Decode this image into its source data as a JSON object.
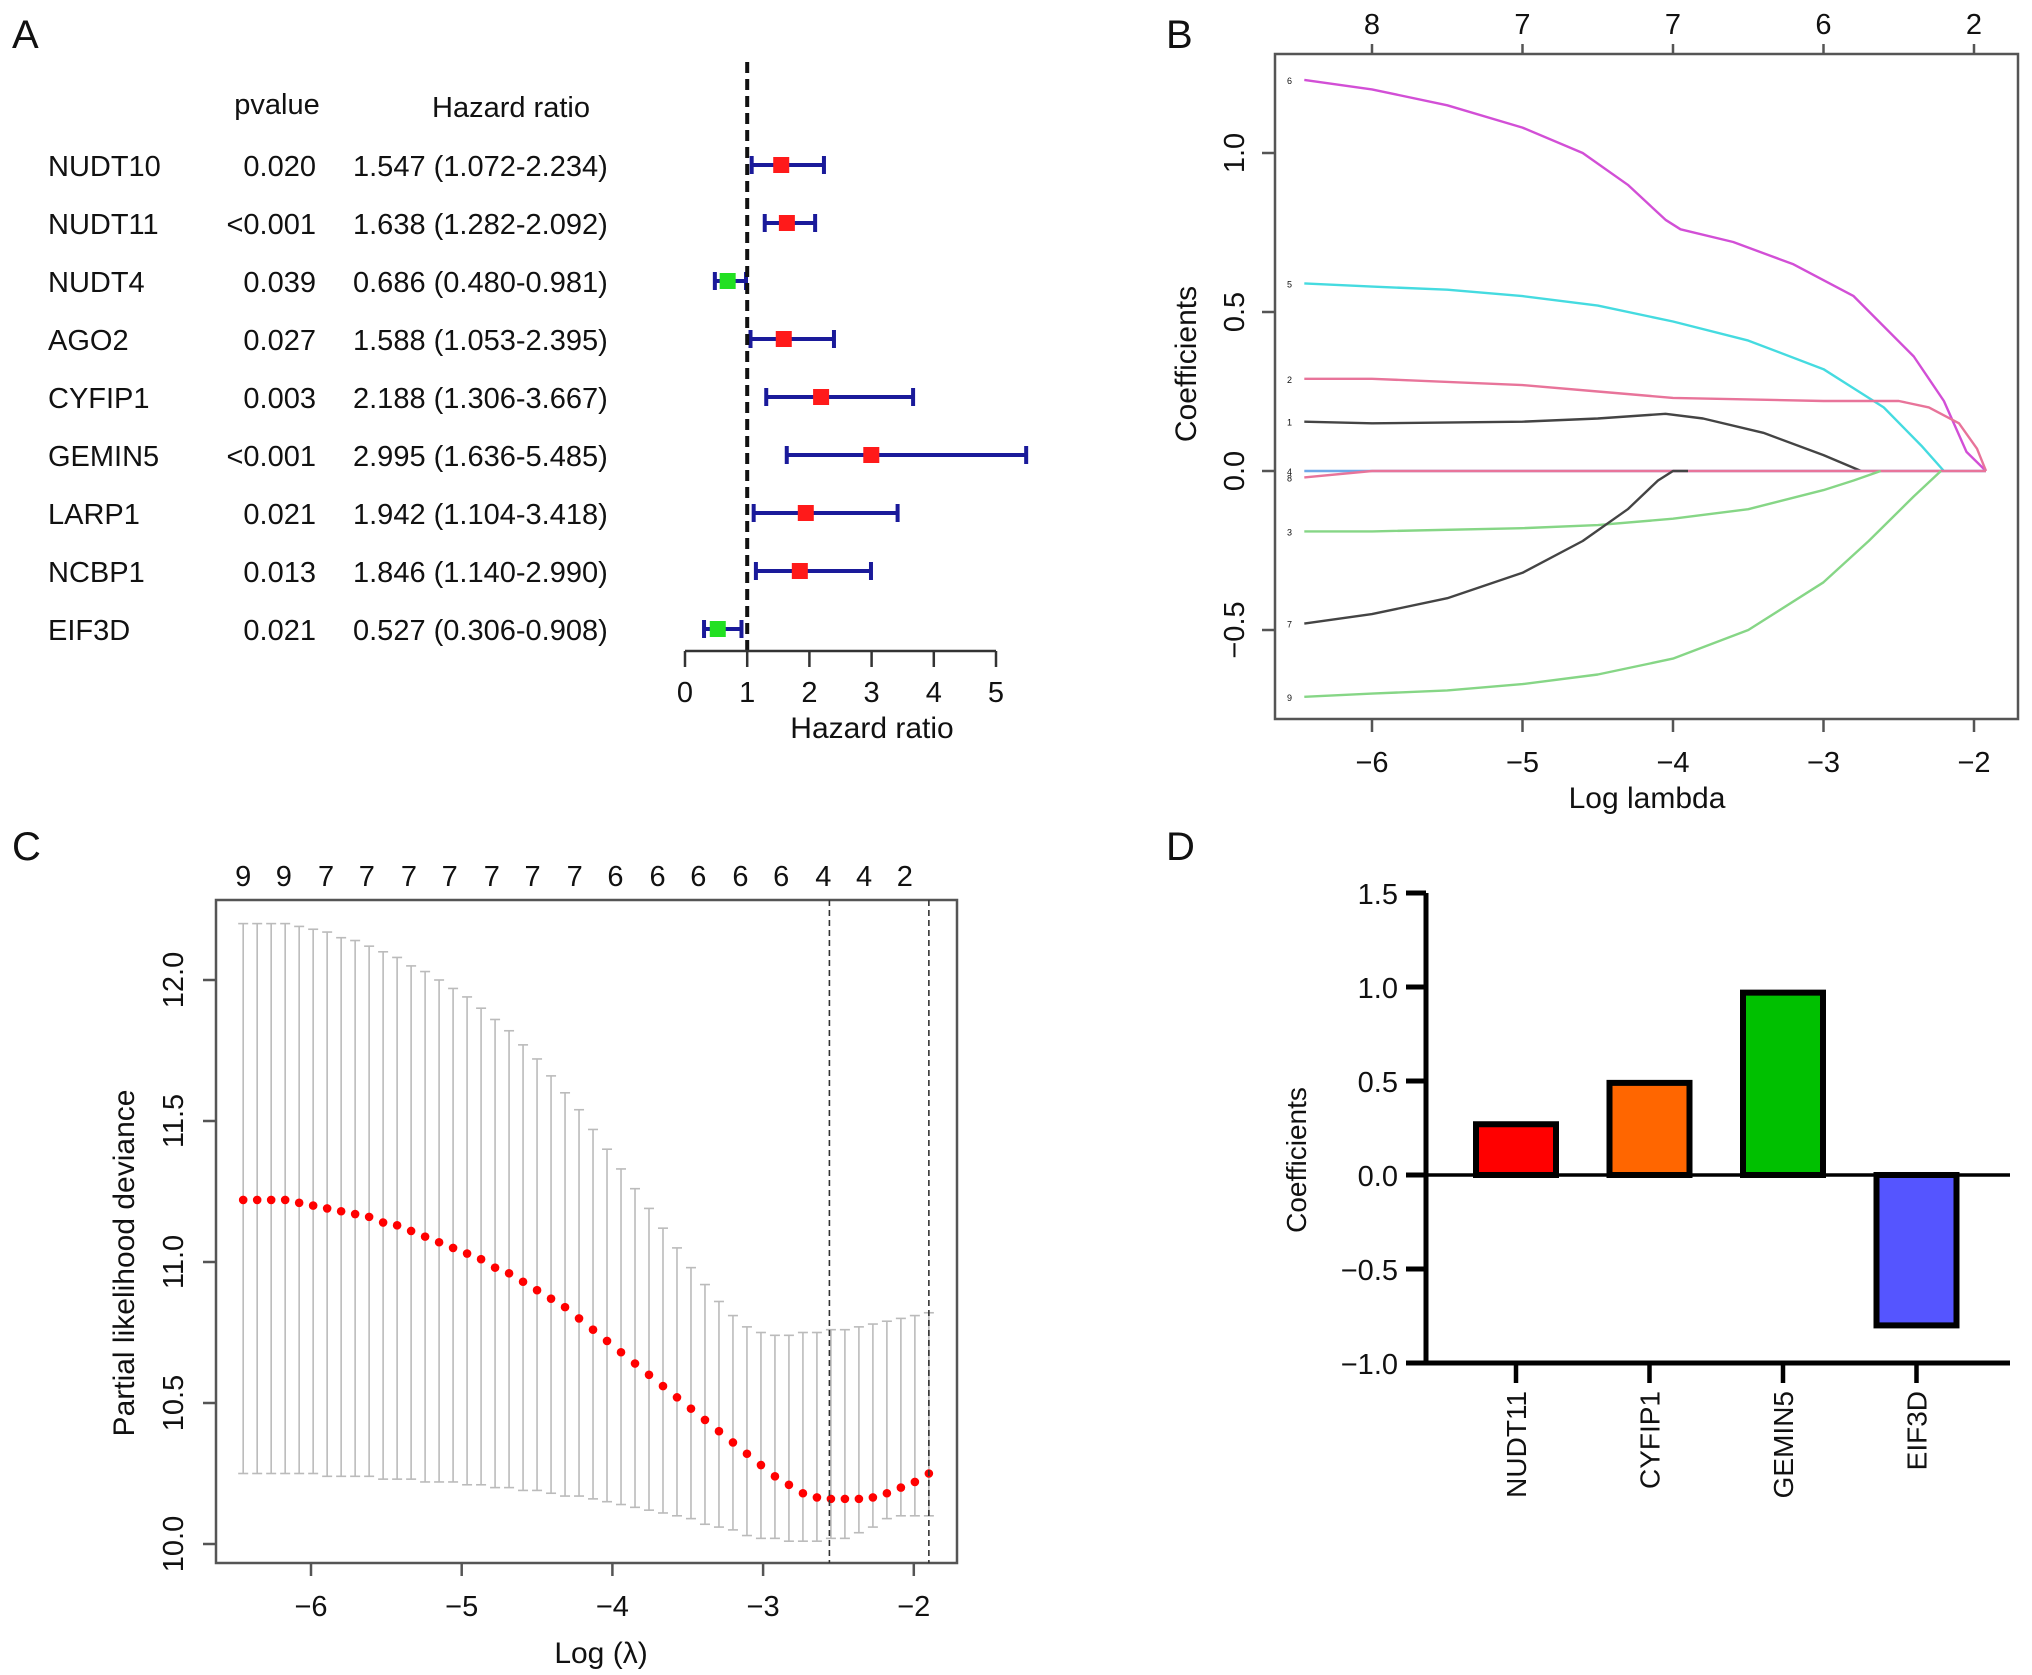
{
  "figure": {
    "panel_labels": [
      "A",
      "B",
      "C",
      "D"
    ]
  },
  "chart_data": [
    {
      "panel": "A",
      "type": "forest",
      "title": "",
      "column_headers": {
        "pvalue": "pvalue",
        "hr": "Hazard ratio"
      },
      "xlabel": "Hazard ratio",
      "xlim": [
        0,
        5
      ],
      "xticks": [
        0,
        1,
        2,
        3,
        4,
        5
      ],
      "reference_line": 1,
      "colors": {
        "risk": "#ff1a1a",
        "protective": "#22e022",
        "ci": "#1a1a9a"
      },
      "rows": [
        {
          "gene": "NUDT10",
          "pvalue": "0.020",
          "hr_text": "1.547 (1.072-2.234)",
          "hr": 1.547,
          "low": 1.072,
          "high": 2.234
        },
        {
          "gene": "NUDT11",
          "pvalue": "<0.001",
          "hr_text": "1.638 (1.282-2.092)",
          "hr": 1.638,
          "low": 1.282,
          "high": 2.092
        },
        {
          "gene": "NUDT4",
          "pvalue": "0.039",
          "hr_text": "0.686 (0.480-0.981)",
          "hr": 0.686,
          "low": 0.48,
          "high": 0.981
        },
        {
          "gene": "AGO2",
          "pvalue": "0.027",
          "hr_text": "1.588 (1.053-2.395)",
          "hr": 1.588,
          "low": 1.053,
          "high": 2.395
        },
        {
          "gene": "CYFIP1",
          "pvalue": "0.003",
          "hr_text": "2.188 (1.306-3.667)",
          "hr": 2.188,
          "low": 1.306,
          "high": 3.667
        },
        {
          "gene": "GEMIN5",
          "pvalue": "<0.001",
          "hr_text": "2.995 (1.636-5.485)",
          "hr": 2.995,
          "low": 1.636,
          "high": 5.485
        },
        {
          "gene": "LARP1",
          "pvalue": "0.021",
          "hr_text": "1.942 (1.104-3.418)",
          "hr": 1.942,
          "low": 1.104,
          "high": 3.418
        },
        {
          "gene": "NCBP1",
          "pvalue": "0.013",
          "hr_text": "1.846 (1.140-2.990)",
          "hr": 1.846,
          "low": 1.14,
          "high": 2.99
        },
        {
          "gene": "EIF3D",
          "pvalue": "0.021",
          "hr_text": "0.527 (0.306-0.908)",
          "hr": 0.527,
          "low": 0.306,
          "high": 0.908
        }
      ]
    },
    {
      "panel": "B",
      "type": "line",
      "title": "",
      "xlabel": "Log lambda",
      "ylabel": "Coefficients",
      "xlim": [
        -6.8,
        -1.6
      ],
      "ylim": [
        -0.78,
        1.3
      ],
      "xticks": [
        -6,
        -5,
        -4,
        -3,
        -2
      ],
      "yticks": [
        -0.5,
        0.0,
        0.5,
        1.0
      ],
      "top_axis": {
        "positions": [
          -6,
          -5,
          -4,
          -3,
          -2
        ],
        "labels": [
          "8",
          "7",
          "7",
          "6",
          "2"
        ]
      },
      "series": [
        {
          "name": "6",
          "color": "#d24fd6",
          "x": [
            -6.45,
            -6,
            -5.5,
            -5,
            -4.6,
            -4.3,
            -4.05,
            -3.95,
            -3.6,
            -3.2,
            -2.8,
            -2.4,
            -2.2,
            -2.05,
            -1.92
          ],
          "y": [
            1.23,
            1.2,
            1.15,
            1.08,
            1.0,
            0.9,
            0.79,
            0.76,
            0.72,
            0.65,
            0.55,
            0.36,
            0.22,
            0.06,
            0.0
          ]
        },
        {
          "name": "5",
          "color": "#45dbe0",
          "x": [
            -6.45,
            -6,
            -5.5,
            -5,
            -4.5,
            -4,
            -3.5,
            -3,
            -2.6,
            -2.35,
            -2.2
          ],
          "y": [
            0.59,
            0.58,
            0.57,
            0.55,
            0.52,
            0.47,
            0.41,
            0.32,
            0.2,
            0.08,
            0.0
          ]
        },
        {
          "name": "2",
          "color": "#e8749a",
          "x": [
            -6.45,
            -6,
            -5,
            -4.5,
            -4,
            -3.5,
            -3,
            -2.5,
            -2.3,
            -2.1,
            -1.98,
            -1.92
          ],
          "y": [
            0.29,
            0.29,
            0.27,
            0.25,
            0.23,
            0.225,
            0.22,
            0.22,
            0.2,
            0.15,
            0.07,
            0.0
          ]
        },
        {
          "name": "1",
          "color": "#444444",
          "x": [
            -6.45,
            -6,
            -5,
            -4.5,
            -4.05,
            -3.8,
            -3.4,
            -3.0,
            -2.75
          ],
          "y": [
            0.155,
            0.15,
            0.155,
            0.165,
            0.18,
            0.165,
            0.12,
            0.05,
            0.0
          ]
        },
        {
          "name": "4",
          "color": "#6fa8e8",
          "x": [
            -6.45,
            -6,
            -1.92
          ],
          "y": [
            0.0,
            0.0,
            0.0
          ]
        },
        {
          "name": "8",
          "color": "#e8749a",
          "x": [
            -6.45,
            -6.0,
            -1.92
          ],
          "y": [
            -0.02,
            0.0,
            0.0
          ]
        },
        {
          "name": "3",
          "color": "#86d686",
          "x": [
            -6.45,
            -6,
            -5,
            -4.5,
            -4,
            -3.5,
            -3.0,
            -2.8,
            -2.62
          ],
          "y": [
            -0.19,
            -0.19,
            -0.18,
            -0.17,
            -0.15,
            -0.12,
            -0.06,
            -0.03,
            0.0
          ]
        },
        {
          "name": "7",
          "color": "#444444",
          "x": [
            -6.45,
            -6,
            -5.5,
            -5,
            -4.6,
            -4.3,
            -4.1,
            -4.0,
            -3.9
          ],
          "y": [
            -0.48,
            -0.45,
            -0.4,
            -0.32,
            -0.22,
            -0.12,
            -0.03,
            0.0,
            0.0
          ]
        },
        {
          "name": "9",
          "color": "#86d686",
          "x": [
            -6.45,
            -6,
            -5.5,
            -5,
            -4.5,
            -4,
            -3.5,
            -3,
            -2.7,
            -2.4,
            -2.22
          ],
          "y": [
            -0.71,
            -0.7,
            -0.69,
            -0.67,
            -0.64,
            -0.59,
            -0.5,
            -0.35,
            -0.22,
            -0.08,
            0.0
          ]
        }
      ]
    },
    {
      "panel": "C",
      "type": "scatter",
      "title": "",
      "xlabel": "Log (λ)",
      "ylabel": "Partial likelihood deviance",
      "xlim": [
        -6.63,
        -1.7
      ],
      "ylim": [
        9.94,
        12.29
      ],
      "xticks": [
        -6,
        -5,
        -4,
        -3,
        -2
      ],
      "yticks": [
        10.0,
        10.5,
        11.0,
        11.5,
        12.0
      ],
      "top_axis": {
        "positions": [
          -6.45,
          -6.18,
          -5.9,
          -5.63,
          -5.35,
          -5.08,
          -4.8,
          -4.53,
          -4.25,
          -3.98,
          -3.7,
          -3.43,
          -3.15,
          -2.88,
          -2.6,
          -2.33,
          -2.06
        ],
        "labels": [
          "9",
          "9",
          "7",
          "7",
          "7",
          "7",
          "7",
          "7",
          "7",
          "6",
          "6",
          "6",
          "6",
          "6",
          "4",
          "4",
          "2"
        ]
      },
      "vlines": [
        -2.56,
        -1.9
      ],
      "point_color": "#ff0000",
      "errorbar_color": "#bbbbbb",
      "n_points": 50,
      "x_start": -6.45,
      "x_end": -1.9,
      "points_mean": [
        11.22,
        11.22,
        11.22,
        11.22,
        11.21,
        11.2,
        11.19,
        11.18,
        11.17,
        11.16,
        11.14,
        11.13,
        11.11,
        11.09,
        11.07,
        11.05,
        11.03,
        11.01,
        10.98,
        10.96,
        10.93,
        10.9,
        10.87,
        10.84,
        10.8,
        10.76,
        10.72,
        10.68,
        10.64,
        10.6,
        10.56,
        10.52,
        10.48,
        10.44,
        10.4,
        10.36,
        10.32,
        10.28,
        10.24,
        10.21,
        10.18,
        10.165,
        10.16,
        10.16,
        10.16,
        10.165,
        10.18,
        10.2,
        10.22,
        10.25
      ],
      "points_upper": [
        12.2,
        12.2,
        12.2,
        12.2,
        12.19,
        12.18,
        12.17,
        12.15,
        12.14,
        12.12,
        12.1,
        12.08,
        12.05,
        12.03,
        12.0,
        11.97,
        11.94,
        11.9,
        11.86,
        11.82,
        11.77,
        11.72,
        11.66,
        11.6,
        11.54,
        11.47,
        11.4,
        11.33,
        11.26,
        11.19,
        11.12,
        11.05,
        10.98,
        10.92,
        10.86,
        10.81,
        10.77,
        10.75,
        10.74,
        10.74,
        10.75,
        10.75,
        10.76,
        10.76,
        10.77,
        10.78,
        10.79,
        10.8,
        10.81,
        10.82
      ],
      "points_lower": [
        10.25,
        10.25,
        10.25,
        10.25,
        10.25,
        10.25,
        10.24,
        10.24,
        10.24,
        10.24,
        10.23,
        10.23,
        10.23,
        10.22,
        10.22,
        10.22,
        10.21,
        10.21,
        10.2,
        10.2,
        10.19,
        10.19,
        10.18,
        10.17,
        10.17,
        10.16,
        10.15,
        10.14,
        10.13,
        10.12,
        10.11,
        10.1,
        10.09,
        10.07,
        10.06,
        10.05,
        10.03,
        10.02,
        10.02,
        10.01,
        10.01,
        10.01,
        10.02,
        10.02,
        10.04,
        10.06,
        10.09,
        10.1,
        10.1,
        10.1
      ]
    },
    {
      "panel": "D",
      "type": "bar",
      "title": "",
      "xlabel": "",
      "ylabel": "Coefficients",
      "ylim": [
        -1.0,
        1.5
      ],
      "yticks": [
        -1.0,
        -0.5,
        0.0,
        0.5,
        1.0,
        1.5
      ],
      "ytick_labels": [
        "−1.0",
        "−0.5",
        "0.0",
        "0.5",
        "1.0",
        "1.5"
      ],
      "categories": [
        "NUDT11",
        "CYFIP1",
        "GEMIN5",
        "EIF3D"
      ],
      "values": [
        0.27,
        0.49,
        0.97,
        -0.8
      ],
      "colors": [
        "#ff0000",
        "#ff6600",
        "#00c000",
        "#5555ff"
      ]
    }
  ]
}
